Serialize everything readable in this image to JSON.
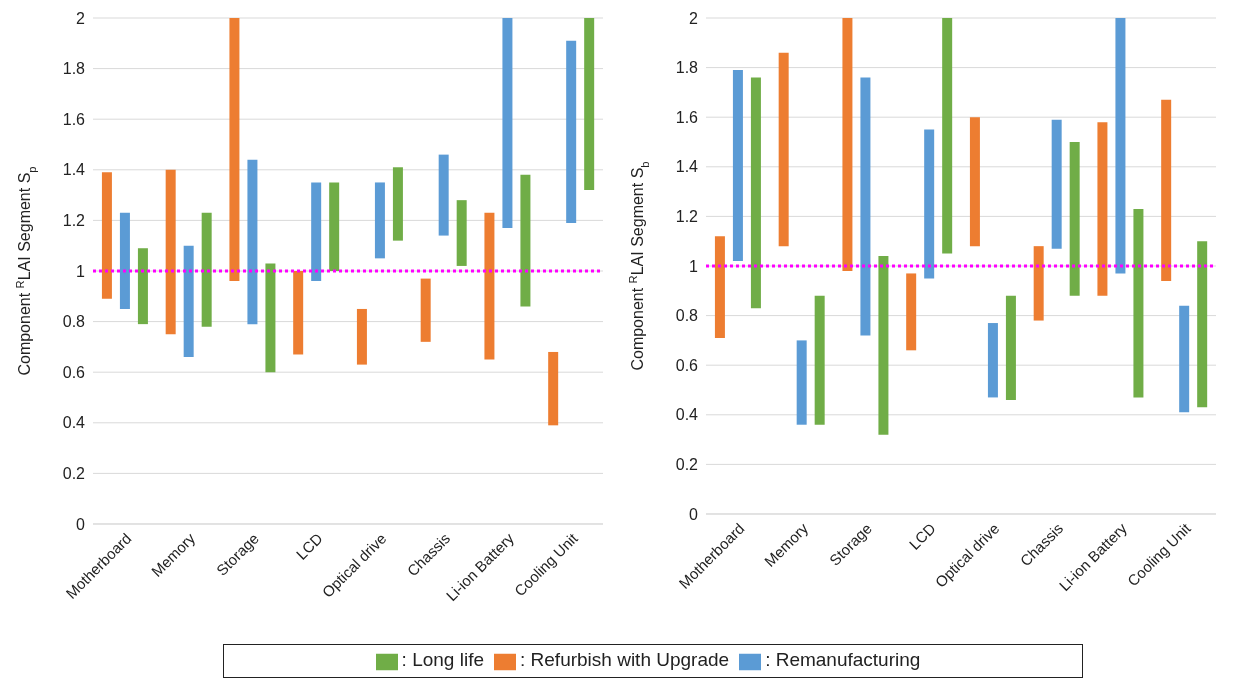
{
  "chart_data": [
    {
      "type": "bar",
      "ylabel": "Component $^{R}$LAI Segment S$_{p}$",
      "categories": [
        "Motherboard",
        "Memory",
        "Storage",
        "LCD",
        "Optical drive",
        "Chassis",
        "Li-ion Battery",
        "Cooling Unit"
      ],
      "ylim": [
        0,
        2
      ],
      "yticks": [
        0,
        0.2,
        0.4,
        0.6,
        0.8,
        1,
        1.2,
        1.4,
        1.6,
        1.8,
        2
      ],
      "grid": "y",
      "legend": "bottom",
      "series": [
        {
          "name": ": Refurbish with Upgrade",
          "color": "#ed7d31",
          "base": [
            0.89,
            0.75,
            0.96,
            0.67,
            0.63,
            0.72,
            0.65,
            0.39
          ],
          "values": [
            0.5,
            0.65,
            1.04,
            0.33,
            0.22,
            0.25,
            0.58,
            0.29
          ]
        },
        {
          "name": ": Remanufacturing",
          "color": "#5b9bd5",
          "base": [
            0.85,
            0.66,
            0.79,
            0.96,
            1.05,
            1.14,
            1.17,
            1.19
          ],
          "values": [
            0.38,
            0.44,
            0.65,
            0.39,
            0.3,
            0.32,
            0.83,
            0.72
          ]
        },
        {
          "name": ": Long life",
          "color": "#70ad47",
          "base": [
            0.79,
            0.78,
            0.6,
            1.0,
            1.12,
            1.02,
            0.86,
            1.32
          ],
          "values": [
            0.3,
            0.45,
            0.43,
            0.35,
            0.29,
            0.26,
            0.52,
            0.68
          ]
        }
      ],
      "ref_lines": [
        {
          "axis": "y",
          "value": 1,
          "color": "#ff00ff",
          "line_style": "dotted"
        }
      ]
    },
    {
      "type": "bar",
      "ylabel": "Component $^{R}$LAI Segment S$_{b}$",
      "categories": [
        "Motherboard",
        "Memory",
        "Storage",
        "LCD",
        "Optical drive",
        "Chassis",
        "Li-ion Battery",
        "Cooling Unit"
      ],
      "ylim": [
        0,
        2
      ],
      "yticks": [
        0,
        0.2,
        0.4,
        0.6,
        0.8,
        1,
        1.2,
        1.4,
        1.6,
        1.8,
        2
      ],
      "grid": "y",
      "series": [
        {
          "color": "#ed7d31",
          "base": [
            0.71,
            1.08,
            0.98,
            0.66,
            1.08,
            0.78,
            0.88,
            0.94
          ],
          "values": [
            0.41,
            0.78,
            1.02,
            0.31,
            0.52,
            0.3,
            0.7,
            0.73
          ]
        },
        {
          "color": "#5b9bd5",
          "base": [
            1.02,
            0.36,
            0.72,
            0.95,
            0.47,
            1.07,
            0.97,
            0.41
          ],
          "values": [
            0.77,
            0.34,
            1.04,
            0.6,
            0.3,
            0.52,
            1.03,
            0.43
          ]
        },
        {
          "color": "#70ad47",
          "base": [
            0.83,
            0.36,
            0.32,
            1.05,
            0.46,
            0.88,
            0.47,
            0.43
          ],
          "values": [
            0.93,
            0.52,
            0.72,
            0.95,
            0.42,
            0.62,
            0.76,
            0.67
          ]
        }
      ],
      "ref_lines": [
        {
          "axis": "y",
          "value": 1,
          "color": "#ff00ff",
          "line_style": "dotted"
        }
      ]
    }
  ]
}
